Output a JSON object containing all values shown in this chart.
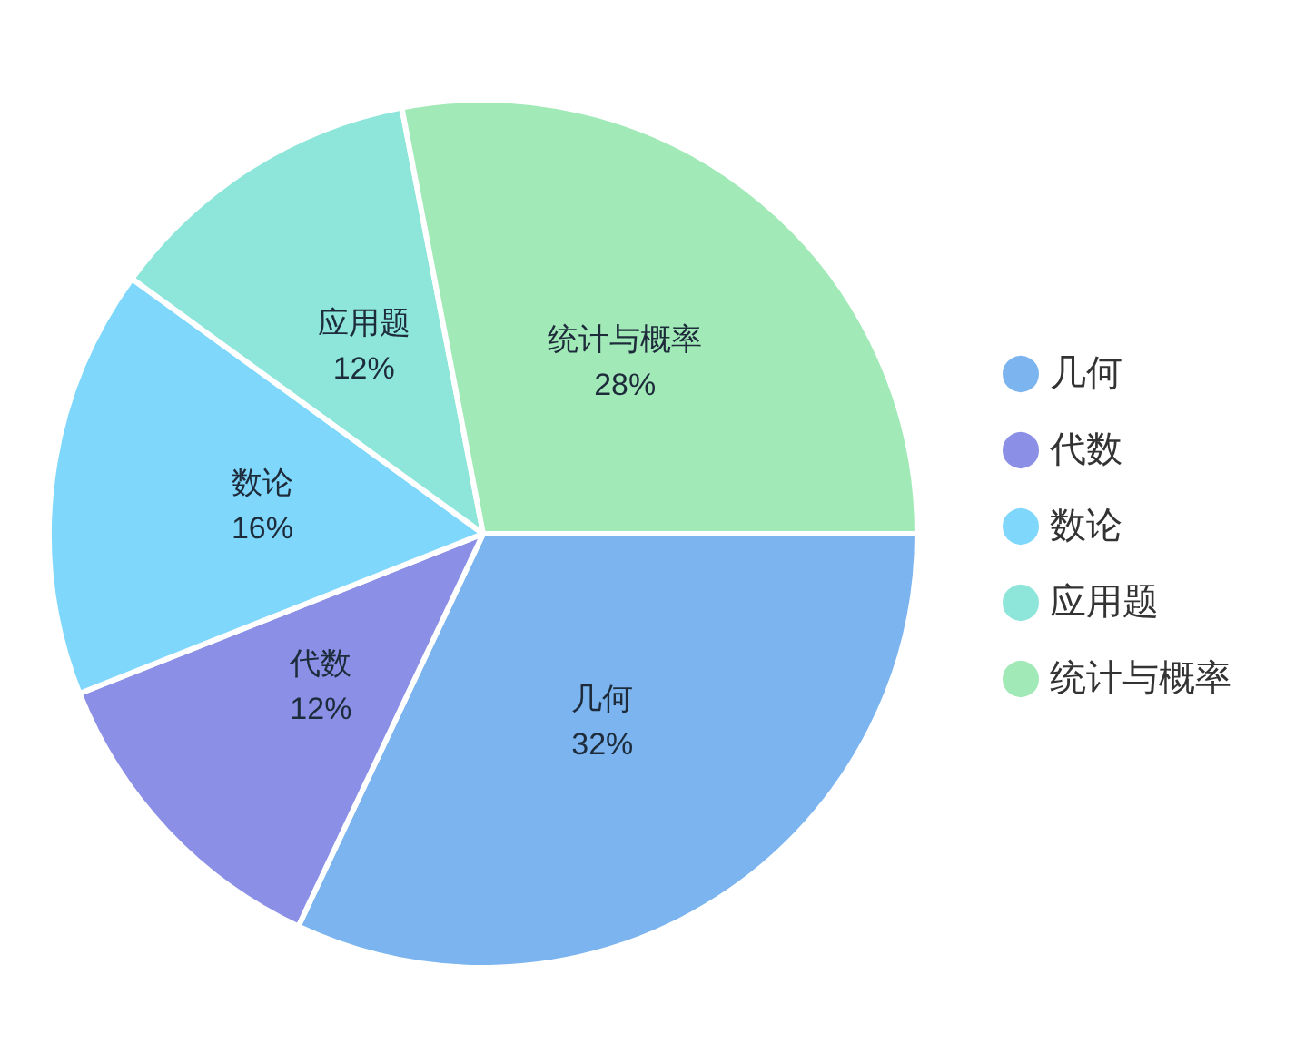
{
  "chart_data": {
    "type": "pie",
    "categories": [
      "几何",
      "代数",
      "数论",
      "应用题",
      "统计与概率"
    ],
    "values": [
      32,
      12,
      16,
      12,
      28
    ],
    "value_labels": [
      "32%",
      "12%",
      "16%",
      "12%",
      "28%"
    ],
    "colors": [
      "#7bb4ee",
      "#8b8fe6",
      "#7fd8fb",
      "#8de6d9",
      "#a2e9b8"
    ],
    "legend": "right"
  }
}
